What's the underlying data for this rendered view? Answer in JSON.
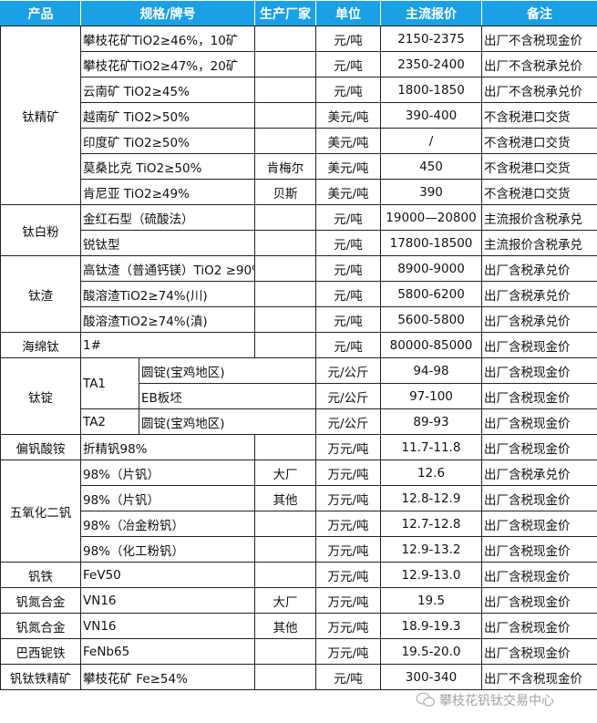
{
  "header": {
    "product": "产品",
    "spec": "规格/牌号",
    "maker": "生产厂家",
    "unit": "单位",
    "price": "主流报价",
    "note": "备注"
  },
  "colors": {
    "header_bg": "#1aa0e4"
  },
  "groups": [
    {
      "product": "钛精矿",
      "rows": [
        {
          "spec": "攀枝花矿TiO2≥46%，10矿",
          "maker": "",
          "unit": "元/吨",
          "price": "2150-2375",
          "note": "出厂不含税现金价"
        },
        {
          "spec": "攀枝花矿TiO2≥47%，20矿",
          "maker": "",
          "unit": "元/吨",
          "price": "2350-2400",
          "note": "出厂不含税承兑价"
        },
        {
          "spec": "云南矿 TiO2≥45%",
          "maker": "",
          "unit": "元/吨",
          "price": "1800-1850",
          "note": "出厂不含税承兑价"
        },
        {
          "spec": "越南矿 TiO2>50%",
          "maker": "",
          "unit": "美元/吨",
          "price": "390-400",
          "note": "不含税港口交货"
        },
        {
          "spec": "印度矿 TiO2≥50%",
          "maker": "",
          "unit": "美元/吨",
          "price": "/",
          "note": "不含税港口交货"
        },
        {
          "spec": "莫桑比克 TiO2≥50%",
          "maker": "肯梅尔",
          "unit": "美元/吨",
          "price": "450",
          "note": "不含税港口交货"
        },
        {
          "spec": "肯尼亚 TiO2≥49%",
          "maker": "贝斯",
          "unit": "美元/吨",
          "price": "390",
          "note": "不含税港口交货"
        }
      ]
    },
    {
      "product": "钛白粉",
      "rows": [
        {
          "spec": "金红石型（硫酸法）",
          "maker": "",
          "unit": "元/吨",
          "price": "19000—20800",
          "note": "主流报价含税承兑"
        },
        {
          "spec": "锐钛型",
          "maker": "",
          "unit": "元/吨",
          "price": "17800-18500",
          "note": "主流报价含税承兑"
        }
      ]
    },
    {
      "product": "钛渣",
      "rows": [
        {
          "spec": "高钛渣（普通钙镁）TiO2 ≥90%",
          "maker": "",
          "unit": "元/吨",
          "price": "8900-9000",
          "note": "出厂含税承兑价"
        },
        {
          "spec": "酸溶渣TiO2≥74%(川)",
          "maker": "",
          "unit": "元/吨",
          "price": "5800-6200",
          "note": "出厂含税承兑价"
        },
        {
          "spec": "酸溶渣TiO2≥74%(滇)",
          "maker": "",
          "unit": "元/吨",
          "price": "5600-5800",
          "note": "出厂含税承兑价"
        }
      ]
    },
    {
      "product": "海绵钛",
      "rows": [
        {
          "spec": "1#",
          "maker": "",
          "unit": "元/吨",
          "price": "80000-85000",
          "note": "出厂含税现金价"
        }
      ]
    },
    {
      "product": "钛锭",
      "split": true,
      "rows": [
        {
          "grade": "TA1",
          "form": "圆锭(宝鸡地区)",
          "unit": "元/公斤",
          "price": "94-98",
          "note": "出厂含税现金价"
        },
        {
          "grade": "TA1",
          "form": "EB板坯",
          "unit": "元/公斤",
          "price": "97-100",
          "note": "出厂含税现金价"
        },
        {
          "grade": "TA2",
          "form": "圆锭(宝鸡地区)",
          "unit": "元/公斤",
          "price": "89-93",
          "note": "出厂含税现金价"
        }
      ]
    },
    {
      "product": "偏钒酸铵",
      "rows": [
        {
          "spec": "折精钒98%",
          "maker": "",
          "unit": "万元/吨",
          "price": "11.7-11.8",
          "note": "出厂含税现金价"
        }
      ]
    },
    {
      "product": "五氧化二钒",
      "rows": [
        {
          "spec": "98%（片钒）",
          "maker": "大厂",
          "unit": "万元/吨",
          "price": "12.6",
          "note": "出厂含税承兑价"
        },
        {
          "spec": "98%（片钒）",
          "maker": "其他",
          "unit": "万元/吨",
          "price": "12.8-12.9",
          "note": "出厂含税现金价"
        },
        {
          "spec": "98%（冶金粉钒）",
          "maker": "",
          "unit": "万元/吨",
          "price": "12.7-12.8",
          "note": "出厂含税现金价"
        },
        {
          "spec": "98%（化工粉钒）",
          "maker": "",
          "unit": "万元/吨",
          "price": "12.9-13.2",
          "note": "出厂含税现金价"
        }
      ]
    },
    {
      "product": "钒铁",
      "rows": [
        {
          "spec": "FeV50",
          "maker": "",
          "unit": "万元/吨",
          "price": "12.9-13.0",
          "note": "出厂含税现金价"
        }
      ]
    },
    {
      "product": "钒氮合金",
      "rows": [
        {
          "spec": "VN16",
          "maker": "大厂",
          "unit": "万元/吨",
          "price": "19.5",
          "note": "出厂含税现金价"
        }
      ]
    },
    {
      "product": "钒氮合金",
      "rows": [
        {
          "spec": "VN16",
          "maker": "其他",
          "unit": "万元/吨",
          "price": "18.9-19.3",
          "note": "出厂含税现金价"
        }
      ]
    },
    {
      "product": "巴西铌铁",
      "rows": [
        {
          "spec": "FeNb65",
          "maker": "",
          "unit": "万元/吨",
          "price": "19.5-20.0",
          "note": "出厂含税现金价"
        }
      ]
    },
    {
      "product": "钒钛铁精矿",
      "rows": [
        {
          "spec": "攀枝花矿 Fe≥54%",
          "maker": "",
          "unit": "元/吨",
          "price": "300-340",
          "note": "出厂不含税现金价"
        }
      ]
    }
  ],
  "watermark": {
    "text": "攀枝花钒钛交易中心",
    "icon": "wechat-icon"
  }
}
